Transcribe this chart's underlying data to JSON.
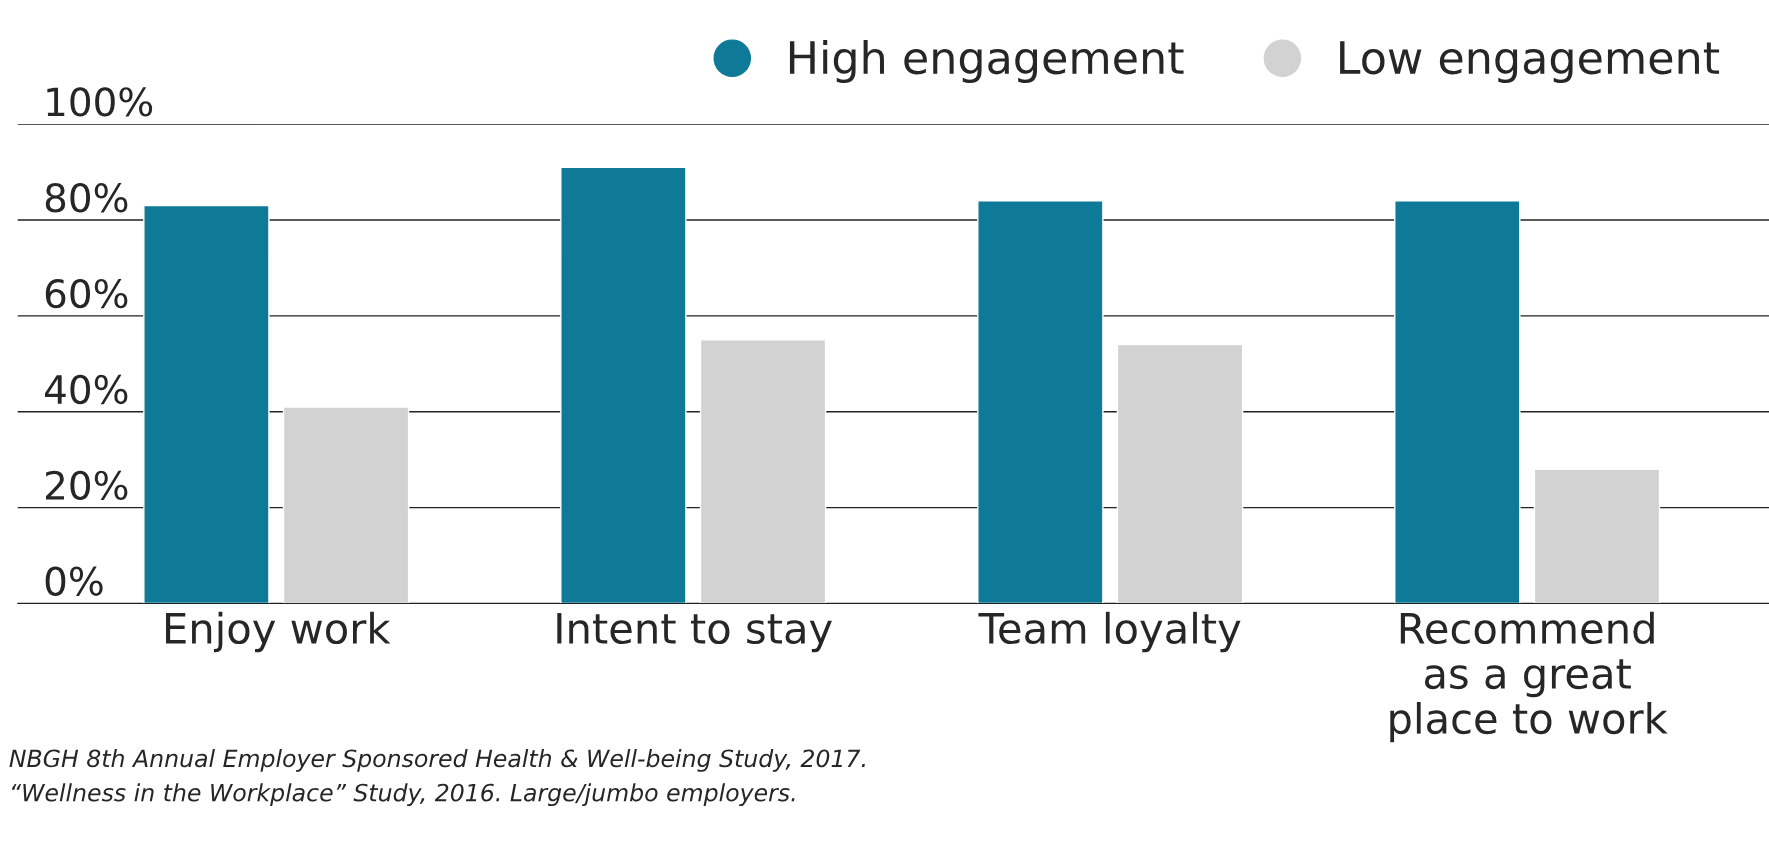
{
  "chart_data": {
    "type": "bar",
    "categories": [
      "Enjoy work",
      "Intent to stay",
      "Team loyalty",
      "Recommend\nas a great\nplace to work"
    ],
    "series": [
      {
        "name": "High engagement",
        "color": "#0e7a98",
        "values": [
          83,
          91,
          84,
          84
        ]
      },
      {
        "name": "Low engagement",
        "color": "#d3d2d3",
        "values": [
          41,
          55,
          54,
          28
        ]
      }
    ],
    "ylim": [
      0,
      100
    ],
    "yticks": [
      {
        "value": 0,
        "label": "0%"
      },
      {
        "value": 20,
        "label": "20%"
      },
      {
        "value": 40,
        "label": "40%"
      },
      {
        "value": 60,
        "label": "60%"
      },
      {
        "value": 80,
        "label": "80%"
      },
      {
        "value": 100,
        "label": "100%"
      }
    ],
    "grid": "y",
    "legend": "top right",
    "marker": "circle",
    "annotations": [
      "NBGH 8th Annual Employer Sponsored Health & Well-being Study, 2017.",
      "“Wellness in the Workplace” Study, 2016. Large/jumbo employers."
    ]
  }
}
